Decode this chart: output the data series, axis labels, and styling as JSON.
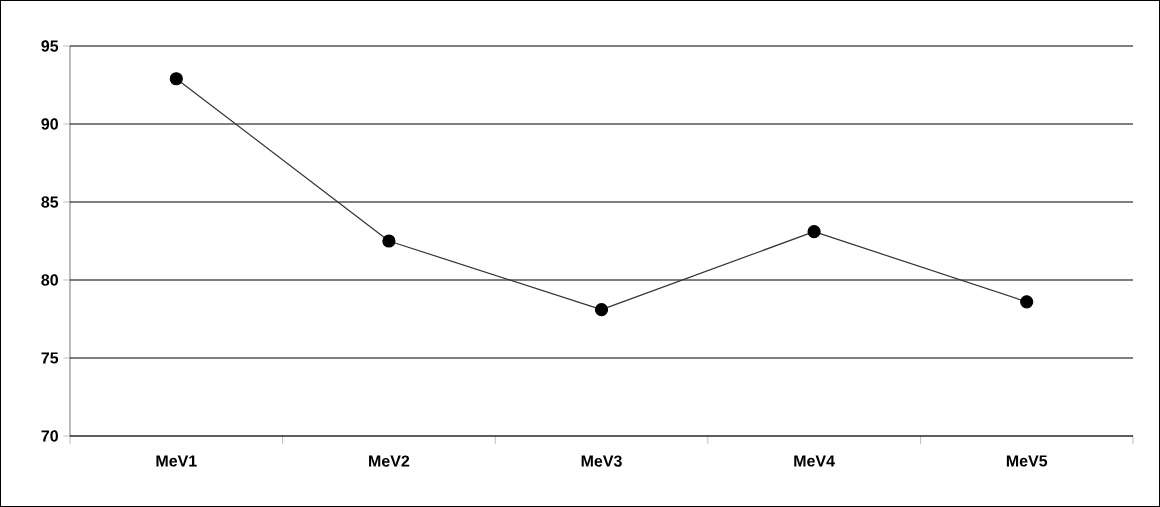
{
  "chart_data": {
    "type": "line",
    "categories": [
      "MeV1",
      "MeV2",
      "MeV3",
      "MeV4",
      "MeV5"
    ],
    "series": [
      {
        "color": "#000000",
        "values": [
          92.9,
          82.5,
          78.1,
          83.1,
          78.6
        ]
      }
    ],
    "ylim": [
      70,
      95
    ],
    "yticks": [
      70,
      75,
      80,
      85,
      90,
      95
    ],
    "grid": "y",
    "marker": "circle",
    "line_style": "solid"
  }
}
